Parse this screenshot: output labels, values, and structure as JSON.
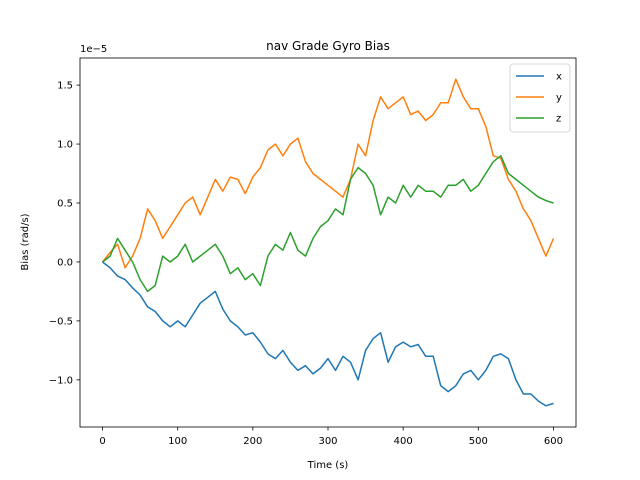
{
  "chart_data": {
    "type": "line",
    "title": "nav Grade Gyro Bias",
    "xlabel": "Time (s)",
    "ylabel": "Bias (rad/s)",
    "y_scale_label": "1e−5",
    "xlim": [
      -30,
      630
    ],
    "ylim": [
      -1.4,
      1.73
    ],
    "y_multiplier": 1e-05,
    "x_ticks": [
      0,
      100,
      200,
      300,
      400,
      500,
      600
    ],
    "x_tick_labels": [
      "0",
      "100",
      "200",
      "300",
      "400",
      "500",
      "600"
    ],
    "y_ticks": [
      -1.0,
      -0.5,
      0.0,
      0.5,
      1.0,
      1.5
    ],
    "y_tick_labels": [
      "−1.0",
      "−0.5",
      "0.0",
      "0.5",
      "1.0",
      "1.5"
    ],
    "grid": false,
    "legend_position": "top-right",
    "series": [
      {
        "name": "x",
        "color": "#1f77b4",
        "x": [
          0,
          10,
          20,
          30,
          40,
          50,
          60,
          70,
          80,
          90,
          100,
          110,
          120,
          130,
          140,
          150,
          160,
          170,
          180,
          190,
          200,
          210,
          220,
          230,
          240,
          250,
          260,
          270,
          280,
          290,
          300,
          310,
          320,
          330,
          340,
          350,
          360,
          370,
          380,
          390,
          400,
          410,
          420,
          430,
          440,
          450,
          460,
          470,
          480,
          490,
          500,
          510,
          520,
          530,
          540,
          550,
          560,
          570,
          580,
          590,
          600
        ],
        "values": [
          0.0,
          -0.05,
          -0.12,
          -0.15,
          -0.22,
          -0.28,
          -0.38,
          -0.42,
          -0.5,
          -0.55,
          -0.5,
          -0.55,
          -0.45,
          -0.35,
          -0.3,
          -0.25,
          -0.4,
          -0.5,
          -0.55,
          -0.62,
          -0.6,
          -0.68,
          -0.78,
          -0.82,
          -0.75,
          -0.85,
          -0.92,
          -0.88,
          -0.95,
          -0.9,
          -0.82,
          -0.92,
          -0.8,
          -0.85,
          -1.0,
          -0.75,
          -0.65,
          -0.6,
          -0.85,
          -0.72,
          -0.68,
          -0.72,
          -0.7,
          -0.8,
          -0.8,
          -1.05,
          -1.1,
          -1.05,
          -0.95,
          -0.92,
          -1.0,
          -0.92,
          -0.8,
          -0.78,
          -0.82,
          -1.0,
          -1.12,
          -1.12,
          -1.18,
          -1.22,
          -1.2
        ]
      },
      {
        "name": "y",
        "color": "#ff7f0e",
        "x": [
          0,
          10,
          20,
          30,
          40,
          50,
          60,
          70,
          80,
          90,
          100,
          110,
          120,
          130,
          140,
          150,
          160,
          170,
          180,
          190,
          200,
          210,
          220,
          230,
          240,
          250,
          260,
          270,
          280,
          290,
          300,
          310,
          320,
          330,
          340,
          350,
          360,
          370,
          380,
          390,
          400,
          410,
          420,
          430,
          440,
          450,
          460,
          470,
          480,
          490,
          500,
          510,
          520,
          530,
          540,
          550,
          560,
          570,
          580,
          590,
          600
        ],
        "values": [
          0.0,
          0.08,
          0.15,
          -0.05,
          0.05,
          0.2,
          0.45,
          0.35,
          0.2,
          0.3,
          0.4,
          0.5,
          0.55,
          0.4,
          0.55,
          0.7,
          0.6,
          0.72,
          0.7,
          0.58,
          0.72,
          0.8,
          0.95,
          1.0,
          0.9,
          1.0,
          1.05,
          0.85,
          0.75,
          0.7,
          0.65,
          0.6,
          0.55,
          0.7,
          1.0,
          0.9,
          1.2,
          1.4,
          1.3,
          1.35,
          1.4,
          1.25,
          1.28,
          1.2,
          1.25,
          1.35,
          1.35,
          1.55,
          1.4,
          1.3,
          1.3,
          1.15,
          0.9,
          0.88,
          0.7,
          0.6,
          0.45,
          0.35,
          0.2,
          0.05,
          0.2
        ]
      },
      {
        "name": "z",
        "color": "#2ca02c",
        "x": [
          0,
          10,
          20,
          30,
          40,
          50,
          60,
          70,
          80,
          90,
          100,
          110,
          120,
          130,
          140,
          150,
          160,
          170,
          180,
          190,
          200,
          210,
          220,
          230,
          240,
          250,
          260,
          270,
          280,
          290,
          300,
          310,
          320,
          330,
          340,
          350,
          360,
          370,
          380,
          390,
          400,
          410,
          420,
          430,
          440,
          450,
          460,
          470,
          480,
          490,
          500,
          510,
          520,
          530,
          540,
          550,
          560,
          570,
          580,
          590,
          600
        ],
        "values": [
          0.0,
          0.05,
          0.2,
          0.1,
          0.0,
          -0.15,
          -0.25,
          -0.2,
          0.05,
          0.0,
          0.05,
          0.15,
          0.0,
          0.05,
          0.1,
          0.15,
          0.05,
          -0.1,
          -0.05,
          -0.15,
          -0.1,
          -0.2,
          0.05,
          0.15,
          0.1,
          0.25,
          0.1,
          0.05,
          0.2,
          0.3,
          0.35,
          0.45,
          0.4,
          0.7,
          0.8,
          0.75,
          0.65,
          0.4,
          0.55,
          0.5,
          0.65,
          0.55,
          0.65,
          0.6,
          0.6,
          0.55,
          0.65,
          0.65,
          0.7,
          0.6,
          0.65,
          0.75,
          0.85,
          0.9,
          0.75,
          0.7,
          0.65,
          0.6,
          0.55,
          0.52,
          0.5
        ]
      }
    ]
  }
}
